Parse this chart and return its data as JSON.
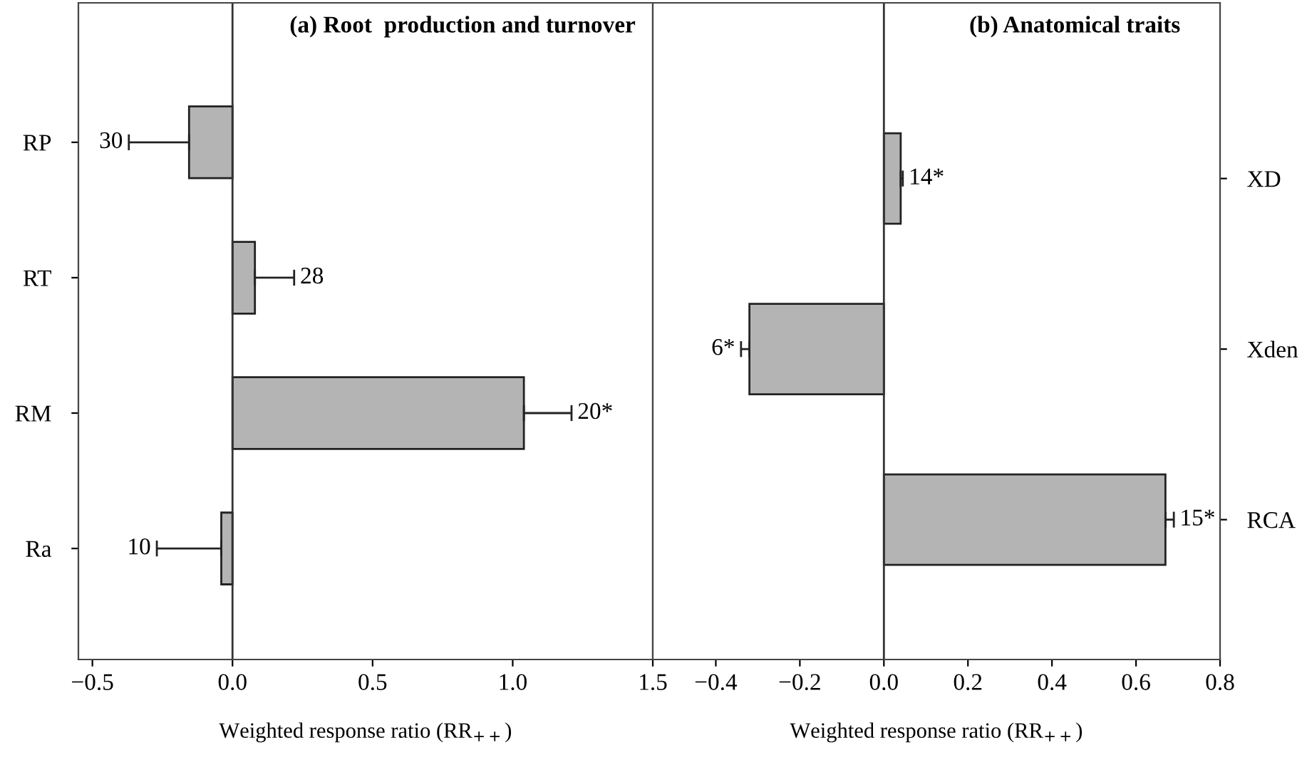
{
  "chart_data": [
    {
      "type": "bar",
      "orientation": "horizontal",
      "title": "(a) Root  production and turnover",
      "xlabel": "Weighted response ratio (RR$_{++}$)",
      "categories": [
        "RP",
        "RT",
        "RM",
        "Ra"
      ],
      "series": [
        {
          "color": "#b4b4b4",
          "values": [
            -0.155,
            0.08,
            1.04,
            -0.04
          ],
          "errors": [
            [
              -0.37,
              -0.155
            ],
            [
              0.08,
              0.22
            ],
            [
              1.04,
              1.21
            ],
            [
              -0.27,
              -0.04
            ]
          ]
        }
      ],
      "xlim": [
        -0.55,
        1.5
      ],
      "xticks": [
        {
          "value": -0.5,
          "label": "−0.5"
        },
        {
          "value": 0,
          "label": "0.0"
        },
        0.5,
        {
          "value": 1.0,
          "label": "1.0"
        },
        1.5
      ],
      "ref_lines": [
        {
          "axis": "x",
          "value": 0,
          "color": "#333333"
        }
      ],
      "annotations": [
        {
          "text": "30",
          "x": -0.37,
          "y": "RP"
        },
        {
          "text": "28",
          "x": 0.22,
          "y": "RT"
        },
        {
          "text": "20*",
          "x": 1.21,
          "y": "RM"
        },
        {
          "text": "10",
          "x": -0.27,
          "y": "Ra"
        }
      ],
      "grid": false,
      "legend": false
    },
    {
      "type": "bar",
      "orientation": "horizontal",
      "title": "(b) Anatomical traits",
      "xlabel": "Weighted response ratio (RR$_{++}$)",
      "categories": [
        "XD",
        "Xden",
        "RCA"
      ],
      "series": [
        {
          "color": "#b4b4b4",
          "values": [
            0.04,
            -0.32,
            0.67
          ],
          "errors": [
            [
              0.04,
              0.045
            ],
            [
              -0.34,
              -0.32
            ],
            [
              0.67,
              0.69
            ]
          ]
        }
      ],
      "xlim": [
        -0.55,
        0.8
      ],
      "xticks": [
        {
          "value": -0.4,
          "label": "−0.4"
        },
        {
          "value": -0.2,
          "label": "−0.2"
        },
        {
          "value": 0,
          "label": "0.0"
        },
        0.2,
        0.4,
        0.6,
        0.8
      ],
      "ref_lines": [
        {
          "axis": "x",
          "value": 0,
          "color": "#333333"
        }
      ],
      "annotations": [
        {
          "text": "14*",
          "x": 0.045,
          "y": "XD"
        },
        {
          "text": "6*",
          "x": -0.34,
          "y": "Xden"
        },
        {
          "text": "15*",
          "x": 0.69,
          "y": "RCA"
        }
      ],
      "grid": false,
      "legend": false
    }
  ]
}
